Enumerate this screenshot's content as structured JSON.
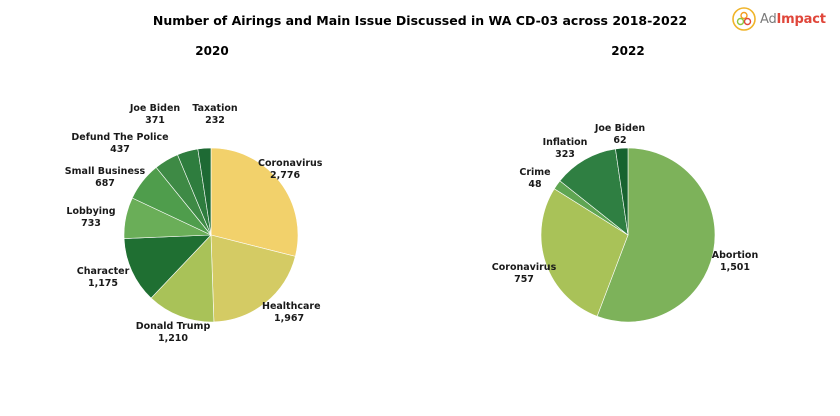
{
  "title": "Number of Airings and Main Issue Discussed in WA CD-03 across 2018-2022",
  "logo": {
    "ad": "Ad",
    "impact": "Impact"
  },
  "chart_data": [
    {
      "type": "pie",
      "title": "2020",
      "start": "top",
      "direction": "clockwise",
      "slices": [
        {
          "label": "Coronavirus",
          "value": 2776,
          "display": "2,776",
          "color": "#f2d16b"
        },
        {
          "label": "Healthcare",
          "value": 1967,
          "display": "1,967",
          "color": "#d4cb64"
        },
        {
          "label": "Donald Trump",
          "value": 1210,
          "display": "1,210",
          "color": "#a9c258"
        },
        {
          "label": "Character",
          "value": 1175,
          "display": "1,175",
          "color": "#1f6f32"
        },
        {
          "label": "Lobbying",
          "value": 733,
          "display": "733",
          "color": "#6aae58"
        },
        {
          "label": "Small Business",
          "value": 687,
          "display": "687",
          "color": "#4f9d4c"
        },
        {
          "label": "Defund The Police",
          "value": 437,
          "display": "437",
          "color": "#3e8a45"
        },
        {
          "label": "Joe Biden",
          "value": 371,
          "display": "371",
          "color": "#2e7d3e"
        },
        {
          "label": "Taxation",
          "value": 232,
          "display": "232",
          "color": "#1e6a34"
        }
      ]
    },
    {
      "type": "pie",
      "title": "2022",
      "start": "top",
      "direction": "clockwise",
      "slices": [
        {
          "label": "Abortion",
          "value": 1501,
          "display": "1,501",
          "color": "#7db25a"
        },
        {
          "label": "Coronavirus",
          "value": 757,
          "display": "757",
          "color": "#a9c258"
        },
        {
          "label": "Crime",
          "value": 48,
          "display": "48",
          "color": "#5fa552"
        },
        {
          "label": "Inflation",
          "value": 323,
          "display": "323",
          "color": "#2f7f42"
        },
        {
          "label": "Joe Biden",
          "value": 62,
          "display": "62",
          "color": "#17632f"
        }
      ]
    }
  ]
}
